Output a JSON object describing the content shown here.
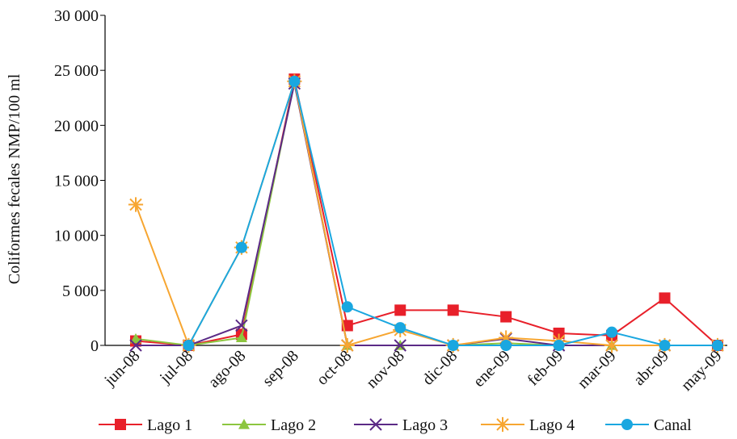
{
  "chart_data": {
    "type": "line",
    "y_label": "Coliformes fecales NMP/100 ml",
    "categories": [
      "jun-08",
      "jul-08",
      "ago-08",
      "sep-08",
      "oct-08",
      "nov-08",
      "dic-08",
      "ene-09",
      "feb-09",
      "mar-09",
      "abr-09",
      "may-09"
    ],
    "series": [
      {
        "name": "Lago 1",
        "color": "#e8202a",
        "marker": "square",
        "values": [
          400,
          0,
          1000,
          24200,
          1800,
          3200,
          3200,
          2600,
          1100,
          900,
          4300,
          0
        ]
      },
      {
        "name": "Lago 2",
        "color": "#8cc63f",
        "marker": "triangle",
        "values": [
          600,
          0,
          700,
          24000,
          0,
          0,
          0,
          200,
          0,
          0,
          0,
          0
        ]
      },
      {
        "name": "Lago 3",
        "color": "#5b2a86",
        "marker": "x",
        "values": [
          0,
          0,
          1800,
          23800,
          0,
          0,
          0,
          600,
          0,
          0,
          0,
          0
        ]
      },
      {
        "name": "Lago 4",
        "color": "#f7a631",
        "marker": "star",
        "values": [
          12800,
          0,
          8900,
          24000,
          0,
          1400,
          0,
          700,
          400,
          0,
          0,
          0
        ]
      },
      {
        "name": "Canal",
        "color": "#1aa7e0",
        "marker": "circle",
        "values": [
          null,
          0,
          8900,
          24000,
          3500,
          1600,
          0,
          0,
          0,
          1200,
          0,
          0
        ]
      }
    ],
    "ylim": [
      0,
      30000
    ],
    "yticks": [
      0,
      {
        "value": 5000,
        "label": "5 000"
      },
      {
        "value": 10000,
        "label": "10 000"
      },
      {
        "value": 15000,
        "label": "15 000"
      },
      {
        "value": 20000,
        "label": "20 000"
      },
      {
        "value": 25000,
        "label": "25 000"
      },
      {
        "value": 30000,
        "label": "30 000"
      }
    ]
  }
}
